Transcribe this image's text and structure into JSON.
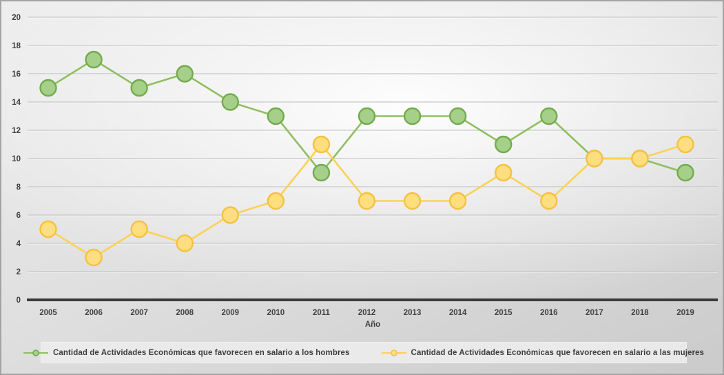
{
  "chart_data": {
    "type": "line",
    "title": "",
    "xlabel": "Año",
    "ylabel": "",
    "categories": [
      "2005",
      "2006",
      "2007",
      "2008",
      "2009",
      "2010",
      "2011",
      "2012",
      "2013",
      "2014",
      "2015",
      "2016",
      "2017",
      "2018",
      "2019"
    ],
    "ylim": [
      0,
      20
    ],
    "ytick_step": 2,
    "yticks": [
      0,
      2,
      4,
      6,
      8,
      10,
      12,
      14,
      16,
      18,
      20
    ],
    "grid": true,
    "legend_position": "bottom",
    "series": [
      {
        "name": "Cantidad de Actividades Económicas que favorecen en salario a los hombres",
        "values": [
          15,
          17,
          15,
          16,
          14,
          13,
          9,
          13,
          13,
          13,
          11,
          13,
          10,
          10,
          9
        ],
        "line_color": "#8fbf61",
        "marker_fill": "#a6d089",
        "marker_stroke": "#73ab4e"
      },
      {
        "name": "Cantidad de Actividades Económicas que favorecen en salario a las mujeres",
        "values": [
          5,
          3,
          5,
          4,
          6,
          7,
          11,
          7,
          7,
          7,
          9,
          7,
          10,
          10,
          11
        ],
        "line_color": "#fcd155",
        "marker_fill": "#ffde80",
        "marker_stroke": "#f4c243"
      }
    ],
    "colors": {
      "gridline": "#b9b9b9",
      "axis_line": "#3a3a3a",
      "tick_text": "#3f3f3f",
      "legend_bg": "#ececec"
    }
  }
}
